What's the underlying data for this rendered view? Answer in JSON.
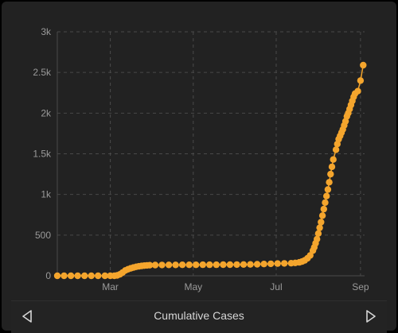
{
  "chart_data": {
    "type": "scatter",
    "title": "",
    "xlabel": "",
    "ylabel": "",
    "x_ticks": [
      "Mar",
      "May",
      "Jul",
      "Sep"
    ],
    "x_tick_dates": [
      "2020-03-01",
      "2020-05-01",
      "2020-07-01",
      "2020-09-01"
    ],
    "x_range": [
      "2020-01-22",
      "2020-09-04"
    ],
    "y_ticks": [
      "0",
      "500",
      "1k",
      "1.5k",
      "2k",
      "2.5k",
      "3k"
    ],
    "ylim": [
      0,
      3000
    ],
    "grid": true,
    "connect_points": true,
    "series": [
      {
        "color": "#f4a52d",
        "points": [
          [
            "2020-01-22",
            0
          ],
          [
            "2020-01-27",
            0
          ],
          [
            "2020-02-01",
            0
          ],
          [
            "2020-02-06",
            0
          ],
          [
            "2020-02-11",
            0
          ],
          [
            "2020-02-16",
            0
          ],
          [
            "2020-02-21",
            0
          ],
          [
            "2020-02-26",
            0
          ],
          [
            "2020-03-01",
            0
          ],
          [
            "2020-03-04",
            0
          ],
          [
            "2020-03-06",
            5
          ],
          [
            "2020-03-08",
            18
          ],
          [
            "2020-03-10",
            40
          ],
          [
            "2020-03-12",
            65
          ],
          [
            "2020-03-14",
            80
          ],
          [
            "2020-03-16",
            92
          ],
          [
            "2020-03-18",
            102
          ],
          [
            "2020-03-20",
            110
          ],
          [
            "2020-03-22",
            116
          ],
          [
            "2020-03-24",
            121
          ],
          [
            "2020-03-26",
            125
          ],
          [
            "2020-03-28",
            128
          ],
          [
            "2020-03-30",
            130
          ],
          [
            "2020-04-03",
            132
          ],
          [
            "2020-04-08",
            133
          ],
          [
            "2020-04-13",
            134
          ],
          [
            "2020-04-18",
            134
          ],
          [
            "2020-04-23",
            135
          ],
          [
            "2020-04-28",
            135
          ],
          [
            "2020-05-03",
            135
          ],
          [
            "2020-05-08",
            136
          ],
          [
            "2020-05-13",
            136
          ],
          [
            "2020-05-18",
            136
          ],
          [
            "2020-05-23",
            137
          ],
          [
            "2020-05-28",
            137
          ],
          [
            "2020-06-02",
            138
          ],
          [
            "2020-06-07",
            139
          ],
          [
            "2020-06-12",
            140
          ],
          [
            "2020-06-17",
            142
          ],
          [
            "2020-06-22",
            145
          ],
          [
            "2020-06-27",
            148
          ],
          [
            "2020-07-02",
            150
          ],
          [
            "2020-07-07",
            152
          ],
          [
            "2020-07-12",
            154
          ],
          [
            "2020-07-15",
            158
          ],
          [
            "2020-07-18",
            165
          ],
          [
            "2020-07-20",
            175
          ],
          [
            "2020-07-22",
            190
          ],
          [
            "2020-07-24",
            215
          ],
          [
            "2020-07-26",
            250
          ],
          [
            "2020-07-28",
            310
          ],
          [
            "2020-07-29",
            350
          ],
          [
            "2020-07-30",
            400
          ],
          [
            "2020-07-31",
            450
          ],
          [
            "2020-08-01",
            520
          ],
          [
            "2020-08-02",
            590
          ],
          [
            "2020-08-03",
            660
          ],
          [
            "2020-08-04",
            740
          ],
          [
            "2020-08-05",
            820
          ],
          [
            "2020-08-06",
            900
          ],
          [
            "2020-08-07",
            980
          ],
          [
            "2020-08-08",
            1060
          ],
          [
            "2020-08-09",
            1150
          ],
          [
            "2020-08-10",
            1250
          ],
          [
            "2020-08-11",
            1340
          ],
          [
            "2020-08-12",
            1430
          ],
          [
            "2020-08-14",
            1550
          ],
          [
            "2020-08-15",
            1620
          ],
          [
            "2020-08-16",
            1680
          ],
          [
            "2020-08-17",
            1720
          ],
          [
            "2020-08-18",
            1760
          ],
          [
            "2020-08-19",
            1800
          ],
          [
            "2020-08-20",
            1850
          ],
          [
            "2020-08-21",
            1900
          ],
          [
            "2020-08-22",
            1960
          ],
          [
            "2020-08-23",
            2000
          ],
          [
            "2020-08-24",
            2050
          ],
          [
            "2020-08-25",
            2100
          ],
          [
            "2020-08-26",
            2150
          ],
          [
            "2020-08-27",
            2200
          ],
          [
            "2020-08-28",
            2240
          ],
          [
            "2020-08-30",
            2270
          ],
          [
            "2020-09-01",
            2400
          ],
          [
            "2020-09-03",
            2590
          ]
        ]
      }
    ]
  },
  "footer": {
    "title": "Cumulative Cases",
    "prev_glyph": "previous",
    "next_glyph": "next"
  },
  "colors": {
    "background": "#222222",
    "grid": "#4a4a4a",
    "axis_text": "#9a9a9a",
    "marker": "#f4a52d"
  }
}
